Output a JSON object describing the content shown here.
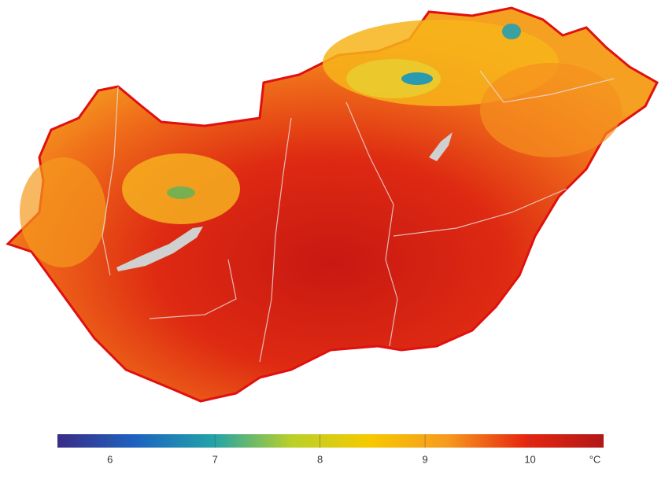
{
  "colorbar": {
    "range": [
      5.5,
      10.7
    ],
    "ticks": [
      6,
      7,
      8,
      9,
      10
    ],
    "unit": "°C",
    "colors": [
      "#3a2c86",
      "#1d63c0",
      "#23a3a8",
      "#b9d02a",
      "#f7c900",
      "#f69a1f",
      "#e6260f",
      "#b11818"
    ]
  }
}
